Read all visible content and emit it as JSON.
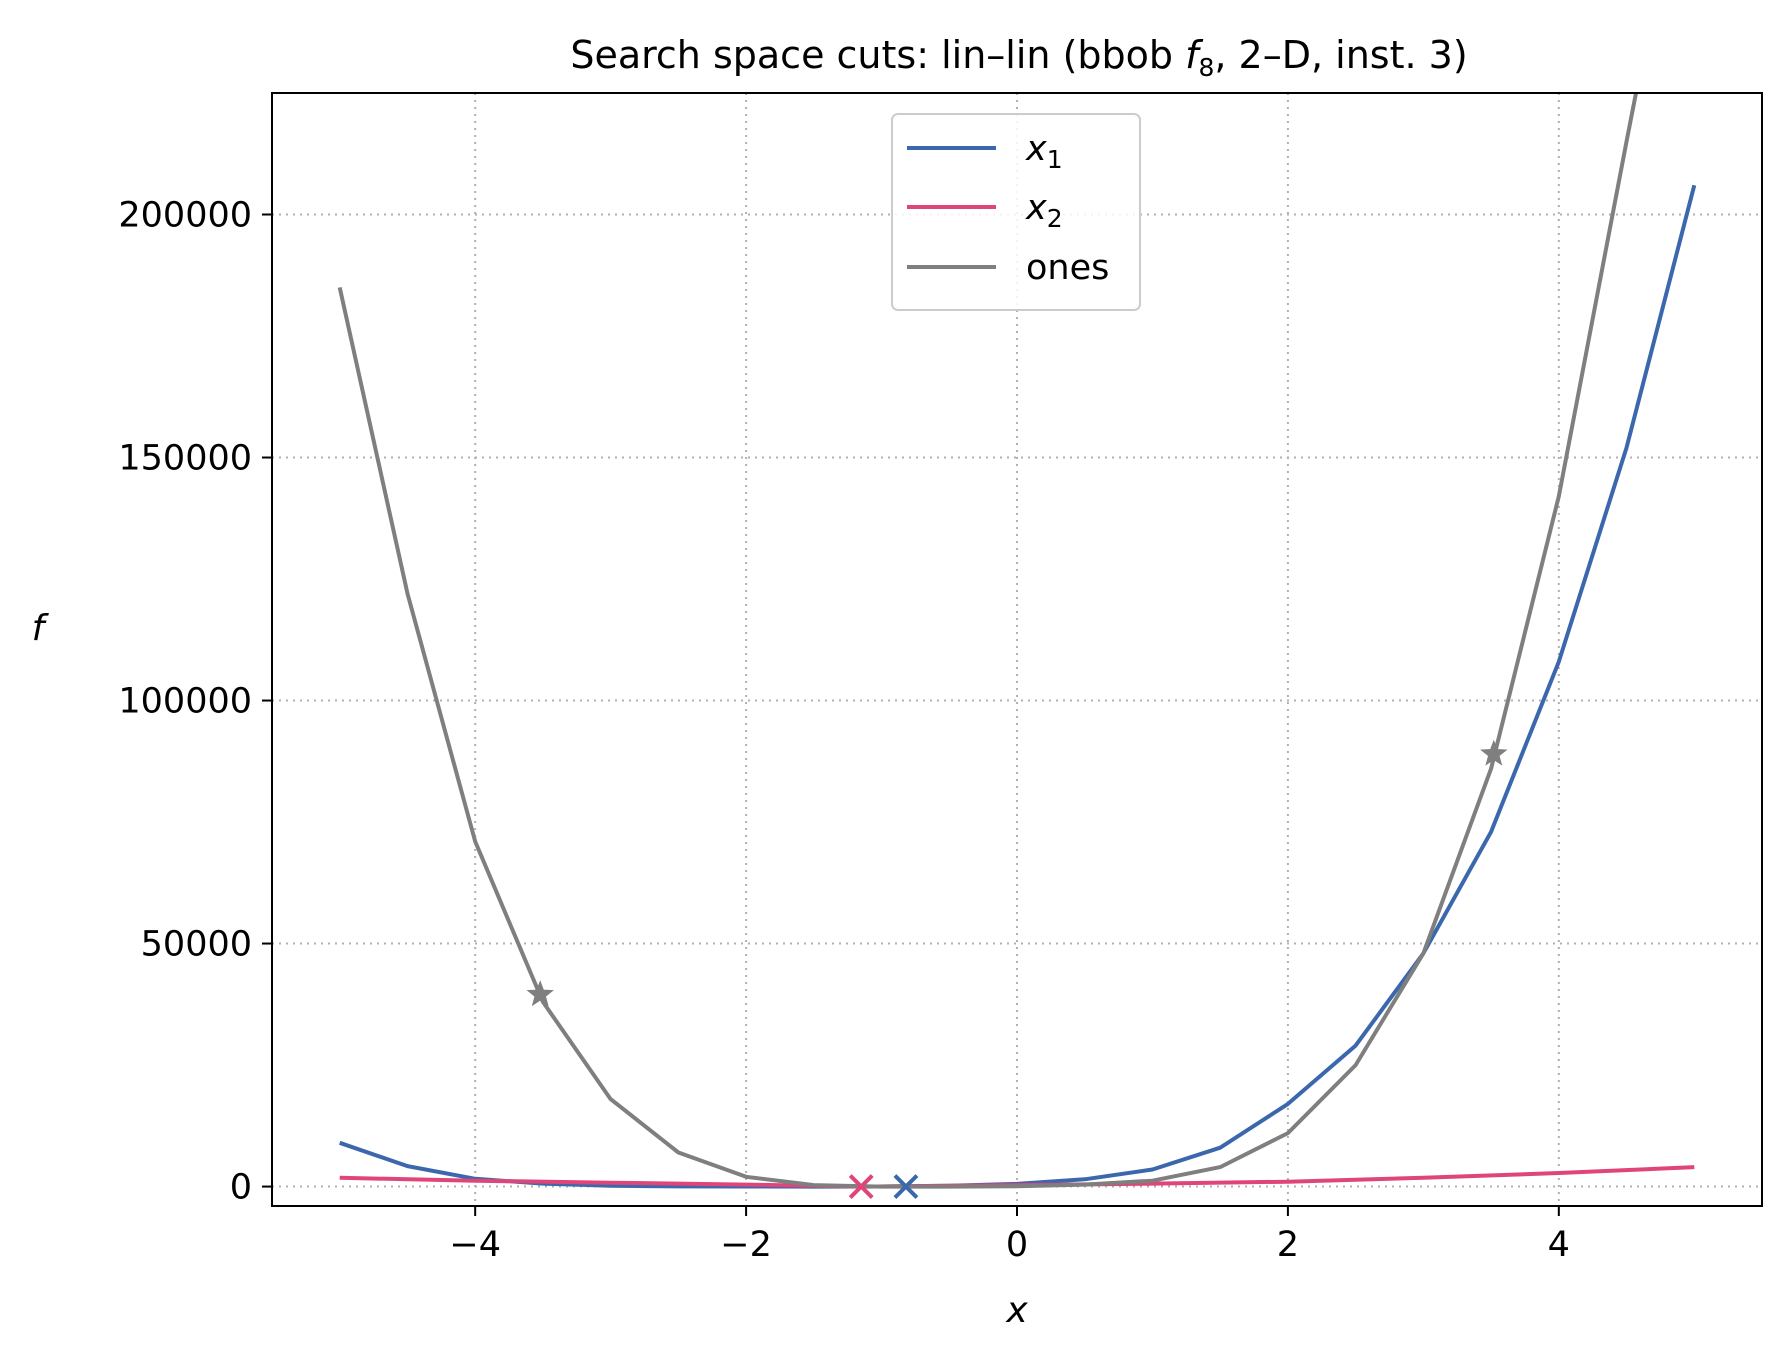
{
  "chart_data": {
    "type": "line",
    "title": {
      "prefix": "Search space cuts: lin–lin (bbob ",
      "func": "f",
      "func_sub": "8",
      "suffix": ", 2–D, inst. 3)"
    },
    "xlabel": "x",
    "ylabel": "f",
    "xlim": [
      -5.5,
      5.5
    ],
    "ylim": [
      -4000,
      225000
    ],
    "xticks": [
      -4,
      -2,
      0,
      2,
      4
    ],
    "xtick_labels": [
      "−4",
      "−2",
      "0",
      "2",
      "4"
    ],
    "yticks": [
      0,
      50000,
      100000,
      150000,
      200000
    ],
    "ytick_labels": [
      "0",
      "50000",
      "100000",
      "150000",
      "200000"
    ],
    "grid": true,
    "legend_position": "top-center",
    "series": [
      {
        "name": "x",
        "name_sub": "1",
        "color": "#3b68ad",
        "x": [
          -5,
          -4.5,
          -4,
          -3.5,
          -3,
          -2.5,
          -2,
          -1.5,
          -1,
          -0.5,
          0,
          0.5,
          1,
          1.5,
          2,
          2.5,
          3,
          3.5,
          4,
          4.5,
          5
        ],
        "y": [
          9000,
          4200,
          1600,
          600,
          180,
          40,
          5,
          0,
          5,
          150,
          550,
          1500,
          3500,
          8000,
          17000,
          29000,
          48000,
          73000,
          108000,
          152000,
          206000
        ],
        "marker": {
          "x": -0.82,
          "y": 0,
          "symbol": "x"
        }
      },
      {
        "name": "x",
        "name_sub": "2",
        "color": "#e0457a",
        "x": [
          -5,
          -4,
          -3,
          -2,
          -1.15,
          0,
          1,
          2,
          3,
          4,
          5
        ],
        "y": [
          1800,
          1200,
          800,
          400,
          0,
          300,
          600,
          1000,
          1800,
          2800,
          4000
        ],
        "marker": {
          "x": -1.15,
          "y": 0,
          "symbol": "x"
        }
      },
      {
        "name": "ones",
        "color": "#7f7f7f",
        "x": [
          -5,
          -4.5,
          -4,
          -3.5,
          -3,
          -2.5,
          -2,
          -1.5,
          -1,
          -0.5,
          0,
          0.5,
          1,
          1.5,
          2,
          2.5,
          3,
          3.5,
          4,
          4.5,
          4.57
        ],
        "y": [
          185000,
          122000,
          71000,
          38000,
          18000,
          7000,
          2000,
          300,
          0,
          0,
          50,
          400,
          1200,
          4000,
          11000,
          25000,
          48000,
          86000,
          142000,
          215000,
          225000
        ],
        "marker": [
          {
            "x": -3.52,
            "y": 39500,
            "symbol": "star"
          },
          {
            "x": 3.52,
            "y": 89000,
            "symbol": "star"
          }
        ]
      }
    ]
  }
}
